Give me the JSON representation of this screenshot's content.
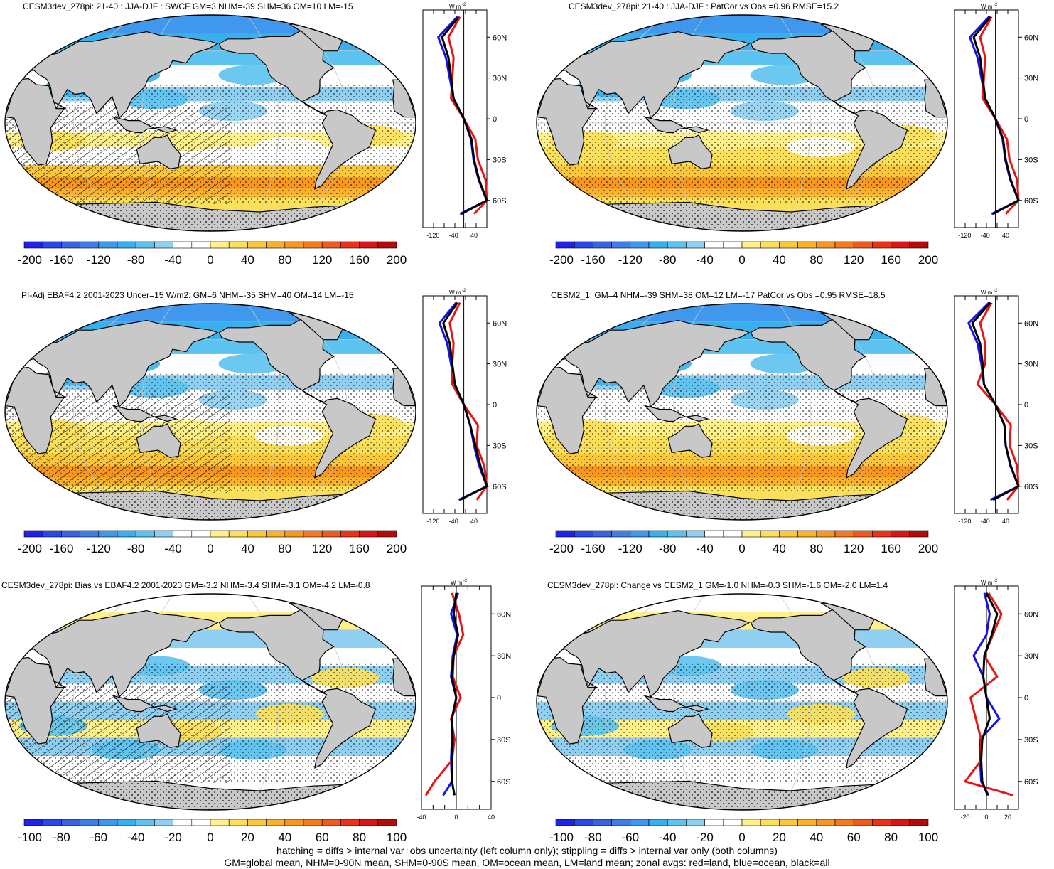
{
  "panels": [
    {
      "id": "p1",
      "title": "CESM3dev_278pi: 21-40 : JJA-DJF : SWCF GM=3 NHM=-39 SHM=36 OM=10 LM=-15",
      "hatch": true,
      "type": "mean"
    },
    {
      "id": "p2",
      "title": "CESM3dev_278pi: 21-40 : JJA-DJF : PatCor vs Obs =0.96 RMSE=15.2",
      "hatch": false,
      "type": "mean"
    },
    {
      "id": "p3",
      "title": "PI-Adj EBAF4.2 2001-2023 Uncer=15 W/m2: GM=6 NHM=-35 SHM=40 OM=14 LM=-15",
      "hatch": true,
      "type": "mean"
    },
    {
      "id": "p4",
      "title": "CESM2_1: GM=4 NHM=-39 SHM=38 OM=12 LM=-17 PatCor vs Obs =0.95 RMSE=18.5",
      "hatch": false,
      "type": "mean"
    },
    {
      "id": "p5",
      "title": "CESM3dev_278pi: Bias vs EBAF4.2 2001-2023 GM=-3.2 NHM=-3.4 SHM=-3.1 OM=-4.2 LM=-0.8",
      "hatch": true,
      "type": "diff"
    },
    {
      "id": "p6",
      "title": "CESM3dev_278pi: Change vs CESM2_1 GM=-1.0 NHM=-0.3 SHM=-1.6 OM=-2.0 LM=1.4",
      "hatch": false,
      "type": "diff"
    }
  ],
  "colorbars": {
    "mean": {
      "labels": [
        "-200",
        "-160",
        "-120",
        "-80",
        "-40",
        "0",
        "40",
        "80",
        "120",
        "160",
        "200"
      ]
    },
    "diff": {
      "labels": [
        "-100",
        "-80",
        "-60",
        "-40",
        "-20",
        "0",
        "20",
        "40",
        "60",
        "80",
        "100"
      ]
    },
    "colors": [
      "#1f22e8",
      "#2848e8",
      "#3a62e0",
      "#3f7ee8",
      "#3f98ee",
      "#38b0ee",
      "#5cc2f0",
      "#8fd0f2",
      "#ffffff",
      "#ffffff",
      "#fff08a",
      "#fde05a",
      "#fcc83a",
      "#fab22a",
      "#f7971f",
      "#f47a1c",
      "#f05a1a",
      "#ec3216",
      "#dc1414",
      "#b40a0a"
    ]
  },
  "zonal_axes": {
    "unit_label": "W m",
    "unit_exp": "-2",
    "lat_labels": [
      "60N",
      "30N",
      "0",
      "30S",
      "60S"
    ],
    "mean_x_labels": [
      "-120",
      "-40",
      "40"
    ],
    "p5_x_labels": [
      "-40",
      "0",
      "40"
    ],
    "p6_x_labels": [
      "-20",
      "0",
      "20"
    ]
  },
  "legend": {
    "land": "#e81414",
    "ocean": "#1414e8",
    "all": "#000000"
  },
  "footer": {
    "line1": "hatching = diffs > internal var+obs uncertainty (left column only); stippling = diffs > internal var only (both columns)",
    "line2": "GM=global mean, NHM=0-90N mean, SHM=0-90S mean, OM=ocean mean, LM=land mean; zonal avgs: red=land, blue=ocean, black=all"
  },
  "chart_data": [
    {
      "type": "line",
      "title": "CESM3dev_278pi: 21-40 : JJA-DJF : SWCF GM=3 NHM=-39 SHM=36 OM=10 LM=-15",
      "xlabel": "W m-2",
      "ylabel": "",
      "lat": [
        75,
        60,
        45,
        30,
        15,
        0,
        -15,
        -30,
        -45,
        -60,
        -70
      ],
      "series": [
        {
          "name": "all",
          "values": [
            -20,
            -85,
            -60,
            -50,
            -40,
            0,
            30,
            40,
            60,
            95,
            -10
          ]
        },
        {
          "name": "ocean",
          "values": [
            -25,
            -100,
            -70,
            -55,
            -40,
            0,
            28,
            38,
            58,
            95,
            -15
          ]
        },
        {
          "name": "land",
          "values": [
            -15,
            -60,
            -40,
            -45,
            -50,
            0,
            45,
            55,
            85,
            120,
            40
          ]
        }
      ]
    },
    {
      "type": "line",
      "title": "CESM3dev_278pi: 21-40 : JJA-DJF : PatCor vs Obs =0.96 RMSE=15.2",
      "xlabel": "W m-2",
      "ylabel": "",
      "lat": [
        75,
        60,
        45,
        30,
        15,
        0,
        -15,
        -30,
        -45,
        -60,
        -70
      ],
      "series": [
        {
          "name": "all",
          "values": [
            -20,
            -85,
            -60,
            -50,
            -40,
            0,
            30,
            40,
            60,
            95,
            -10
          ]
        },
        {
          "name": "ocean",
          "values": [
            -25,
            -100,
            -70,
            -55,
            -40,
            0,
            28,
            38,
            58,
            95,
            -15
          ]
        },
        {
          "name": "land",
          "values": [
            -15,
            -60,
            -40,
            -45,
            -50,
            0,
            45,
            55,
            85,
            120,
            40
          ]
        }
      ]
    },
    {
      "type": "line",
      "title": "PI-Adj EBAF4.2 2001-2023 Uncer=15 W/m2: GM=6 NHM=-35 SHM=40 OM=14 LM=-15",
      "xlabel": "W m-2",
      "ylabel": "",
      "lat": [
        75,
        60,
        45,
        30,
        15,
        0,
        -15,
        -30,
        -45,
        -60,
        -70
      ],
      "series": [
        {
          "name": "all",
          "values": [
            -25,
            -80,
            -55,
            -45,
            -35,
            0,
            25,
            45,
            65,
            100,
            -15
          ]
        },
        {
          "name": "ocean",
          "values": [
            -30,
            -95,
            -65,
            -50,
            -35,
            0,
            25,
            40,
            60,
            100,
            -20
          ]
        },
        {
          "name": "land",
          "values": [
            -15,
            -55,
            -40,
            -45,
            -45,
            0,
            55,
            50,
            80,
            115,
            50
          ]
        }
      ]
    },
    {
      "type": "line",
      "title": "CESM2_1: GM=4 NHM=-39 SHM=38 OM=12 LM=-17 PatCor vs Obs =0.95 RMSE=18.5",
      "xlabel": "W m-2",
      "ylabel": "",
      "lat": [
        75,
        60,
        45,
        30,
        15,
        0,
        -15,
        -30,
        -45,
        -60,
        -70
      ],
      "series": [
        {
          "name": "all",
          "values": [
            -20,
            -90,
            -60,
            -50,
            -45,
            0,
            35,
            40,
            60,
            100,
            -10
          ]
        },
        {
          "name": "ocean",
          "values": [
            -25,
            -105,
            -70,
            -55,
            -45,
            0,
            35,
            40,
            58,
            100,
            -20
          ]
        },
        {
          "name": "land",
          "values": [
            -15,
            -60,
            -40,
            -40,
            -70,
            0,
            60,
            55,
            85,
            120,
            45
          ]
        }
      ]
    },
    {
      "type": "line",
      "title": "CESM3dev_278pi: Bias vs EBAF4.2 2001-2023 GM=-3.2 NHM=-3.4 SHM=-3.1 OM=-4.2 LM=-0.8",
      "xlabel": "W m-2",
      "ylabel": "",
      "lat": [
        75,
        60,
        45,
        30,
        15,
        0,
        -15,
        -30,
        -45,
        -60,
        -70
      ],
      "series": [
        {
          "name": "all",
          "values": [
            0,
            -3,
            2,
            -3,
            -5,
            0,
            -5,
            -4,
            -5,
            -5,
            -2
          ]
        },
        {
          "name": "ocean",
          "values": [
            2,
            -6,
            1,
            -4,
            -6,
            0,
            -5,
            -5,
            -6,
            -5,
            -15
          ]
        },
        {
          "name": "land",
          "values": [
            -5,
            3,
            8,
            -3,
            -4,
            5,
            -6,
            -2,
            -5,
            -25,
            -35
          ]
        }
      ]
    },
    {
      "type": "line",
      "title": "CESM3dev_278pi: Change vs CESM2_1 GM=-1.0 NHM=-0.3 SHM=-1.6 OM=-2.0 LM=1.4",
      "xlabel": "W m-2",
      "ylabel": "",
      "lat": [
        75,
        60,
        45,
        30,
        15,
        0,
        -15,
        -30,
        -45,
        -60,
        -70
      ],
      "series": [
        {
          "name": "all",
          "values": [
            0,
            10,
            5,
            -2,
            -3,
            0,
            3,
            -4,
            -5,
            -4,
            1
          ]
        },
        {
          "name": "ocean",
          "values": [
            -2,
            3,
            0,
            -12,
            -3,
            0,
            12,
            -6,
            -6,
            -5,
            2
          ]
        },
        {
          "name": "land",
          "values": [
            2,
            14,
            6,
            -2,
            10,
            -15,
            -10,
            -5,
            -5,
            -20,
            25
          ]
        }
      ]
    }
  ]
}
